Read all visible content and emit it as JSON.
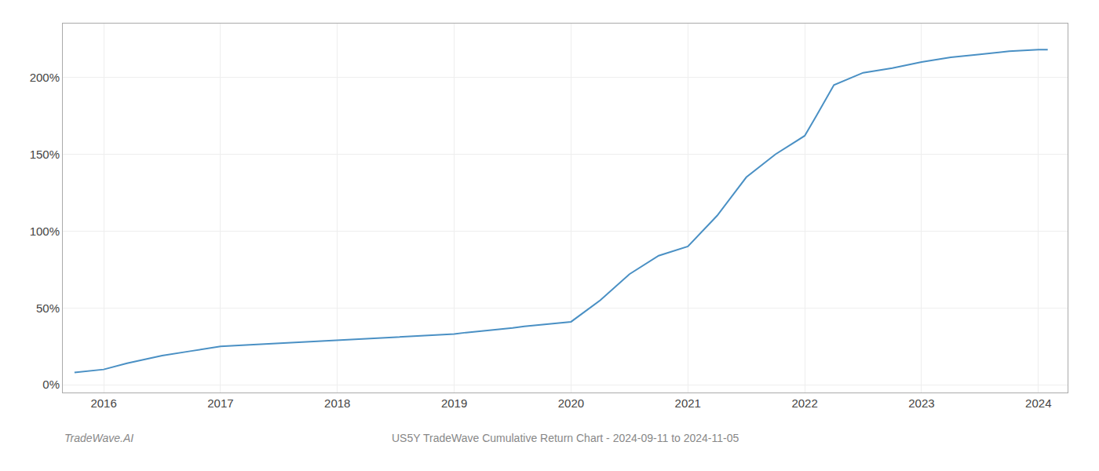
{
  "chart_data": {
    "type": "line",
    "title": "US5Y TradeWave Cumulative Return Chart - 2024-09-11 to 2024-11-05",
    "annotations": [
      "TradeWave.AI"
    ],
    "color": "#4a90c4",
    "x": [
      2015.75,
      2016.0,
      2016.2,
      2016.5,
      2016.75,
      2017.0,
      2017.25,
      2017.5,
      2017.75,
      2018.0,
      2018.25,
      2018.5,
      2018.75,
      2019.0,
      2019.1,
      2019.25,
      2019.5,
      2019.6,
      2019.75,
      2020.0,
      2020.25,
      2020.5,
      2020.75,
      2021.0,
      2021.25,
      2021.5,
      2021.75,
      2022.0,
      2022.1,
      2022.25,
      2022.5,
      2022.75,
      2023.0,
      2023.25,
      2023.5,
      2023.75,
      2024.0,
      2024.08
    ],
    "values": [
      8,
      10,
      14,
      19,
      22,
      25,
      26,
      27,
      28,
      29,
      30,
      31,
      32,
      33,
      34,
      35,
      37,
      38,
      39,
      41,
      55,
      72,
      84,
      90,
      110,
      135,
      150,
      162,
      175,
      195,
      203,
      206,
      210,
      213,
      215,
      217,
      218,
      218
    ],
    "xlim": [
      2015.65,
      2024.25
    ],
    "xticks": [
      2016,
      2017,
      2018,
      2019,
      2020,
      2021,
      2022,
      2023,
      2024
    ],
    "ylim": [
      -5,
      235
    ],
    "yticks": [
      {
        "value": 0,
        "label": "0%"
      },
      {
        "value": 50,
        "label": "50%"
      },
      {
        "value": 100,
        "label": "100%"
      },
      {
        "value": 150,
        "label": "150%"
      },
      {
        "value": 200,
        "label": "200%"
      }
    ],
    "grid": true
  }
}
